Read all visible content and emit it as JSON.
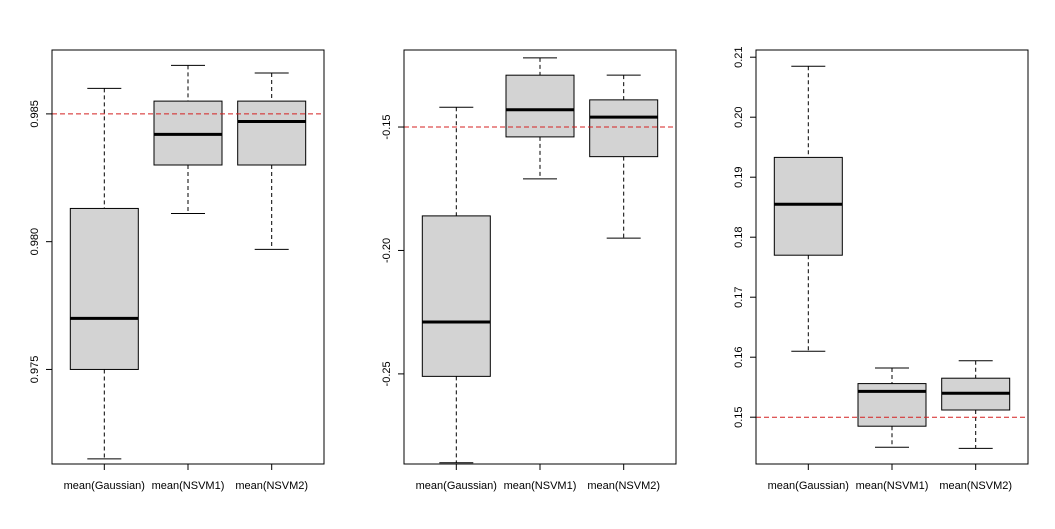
{
  "chart_data": [
    {
      "type": "boxplot",
      "title": "",
      "xlabel": "",
      "ylabel": "",
      "categories": [
        "mean(Gaussian)",
        "mean(NSVM1)",
        "mean(NSVM2)"
      ],
      "ylim": [
        0.9713,
        0.9875
      ],
      "yticks": [
        0.975,
        0.98,
        0.985
      ],
      "ytick_labels": [
        "0.975",
        "0.980",
        "0.985"
      ],
      "reference_line": 0.985,
      "reference_color": "#d42020",
      "box_fill": "#d3d3d3",
      "boxes": [
        {
          "name": "mean(Gaussian)",
          "min": 0.9715,
          "q1": 0.975,
          "median": 0.977,
          "q3": 0.9813,
          "max": 0.986
        },
        {
          "name": "mean(NSVM1)",
          "min": 0.9811,
          "q1": 0.983,
          "median": 0.9842,
          "q3": 0.9855,
          "max": 0.9869
        },
        {
          "name": "mean(NSVM2)",
          "min": 0.9797,
          "q1": 0.983,
          "median": 0.9847,
          "q3": 0.9855,
          "max": 0.9866
        }
      ]
    },
    {
      "type": "boxplot",
      "title": "",
      "xlabel": "",
      "ylabel": "",
      "categories": [
        "mean(Gaussian)",
        "mean(NSVM1)",
        "mean(NSVM2)"
      ],
      "ylim": [
        -0.2865,
        -0.1188
      ],
      "yticks": [
        -0.25,
        -0.2,
        -0.15
      ],
      "ytick_labels": [
        "-0.25",
        "-0.20",
        "-0.15"
      ],
      "reference_line": -0.15,
      "reference_color": "#d42020",
      "box_fill": "#d3d3d3",
      "boxes": [
        {
          "name": "mean(Gaussian)",
          "min": -0.286,
          "q1": -0.251,
          "median": -0.229,
          "q3": -0.186,
          "max": -0.142
        },
        {
          "name": "mean(NSVM1)",
          "min": -0.171,
          "q1": -0.154,
          "median": -0.143,
          "q3": -0.129,
          "max": -0.122
        },
        {
          "name": "mean(NSVM2)",
          "min": -0.195,
          "q1": -0.162,
          "median": -0.146,
          "q3": -0.139,
          "max": -0.129
        }
      ]
    },
    {
      "type": "boxplot",
      "title": "",
      "xlabel": "",
      "ylabel": "",
      "categories": [
        "mean(Gaussian)",
        "mean(NSVM1)",
        "mean(NSVM2)"
      ],
      "ylim": [
        0.1422,
        0.2112
      ],
      "yticks": [
        0.15,
        0.16,
        0.17,
        0.18,
        0.19,
        0.2,
        0.21
      ],
      "ytick_labels": [
        "0.15",
        "0.16",
        "0.17",
        "0.18",
        "0.19",
        "0.20",
        "0.21"
      ],
      "reference_line": 0.15,
      "reference_color": "#d42020",
      "box_fill": "#d3d3d3",
      "boxes": [
        {
          "name": "mean(Gaussian)",
          "min": 0.161,
          "q1": 0.177,
          "median": 0.1855,
          "q3": 0.1933,
          "max": 0.2085
        },
        {
          "name": "mean(NSVM1)",
          "min": 0.145,
          "q1": 0.1485,
          "median": 0.1543,
          "q3": 0.1556,
          "max": 0.1582
        },
        {
          "name": "mean(NSVM2)",
          "min": 0.1448,
          "q1": 0.1512,
          "median": 0.154,
          "q3": 0.1565,
          "max": 0.1594
        }
      ]
    }
  ]
}
